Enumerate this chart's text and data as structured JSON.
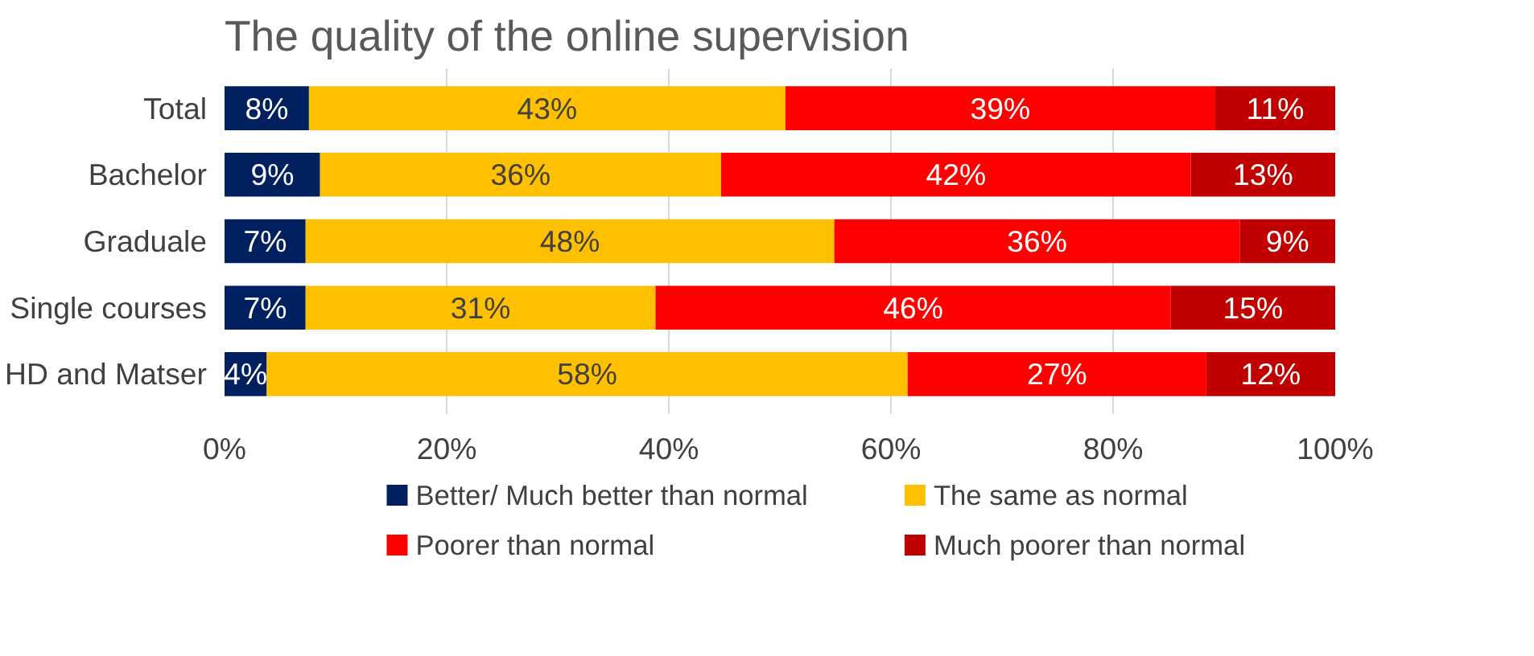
{
  "chart_data": {
    "type": "bar",
    "orientation": "horizontal",
    "stacked": true,
    "title": "The quality of the online supervision",
    "categories": [
      "Total",
      "Bachelor",
      "Graduale",
      "Single courses",
      "HD and Matser"
    ],
    "series": [
      {
        "name": "Better/ Much better than normal",
        "color": "#002060",
        "values": [
          7.6,
          8.6,
          7.3,
          7.3,
          3.8
        ],
        "value_labels": [
          "8%",
          "9%",
          "7%",
          "7%",
          "4%"
        ]
      },
      {
        "name": "The same as normal",
        "color": "#ffc000",
        "values": [
          42.9,
          36.1,
          47.6,
          31.5,
          57.7
        ],
        "value_labels": [
          "43%",
          "36%",
          "48%",
          "31%",
          "58%"
        ]
      },
      {
        "name": "Poorer than normal",
        "color": "#ff0000",
        "values": [
          38.7,
          42.3,
          36.5,
          46.4,
          26.9
        ],
        "value_labels": [
          "39%",
          "42%",
          "36%",
          "46%",
          "27%"
        ]
      },
      {
        "name": "Much poorer than normal",
        "color": "#c00000",
        "values": [
          10.8,
          13.0,
          8.6,
          14.8,
          11.6
        ],
        "value_labels": [
          "11%",
          "13%",
          "9%",
          "15%",
          "12%"
        ]
      }
    ],
    "xlim": [
      0,
      100
    ],
    "xticks": [
      {
        "value": 0,
        "label": "0%"
      },
      {
        "value": 20,
        "label": "20%"
      },
      {
        "value": 40,
        "label": "40%"
      },
      {
        "value": 60,
        "label": "60%"
      },
      {
        "value": 80,
        "label": "80%"
      },
      {
        "value": 100,
        "label": "100%"
      }
    ],
    "grid": "x",
    "legend": "bottom"
  }
}
